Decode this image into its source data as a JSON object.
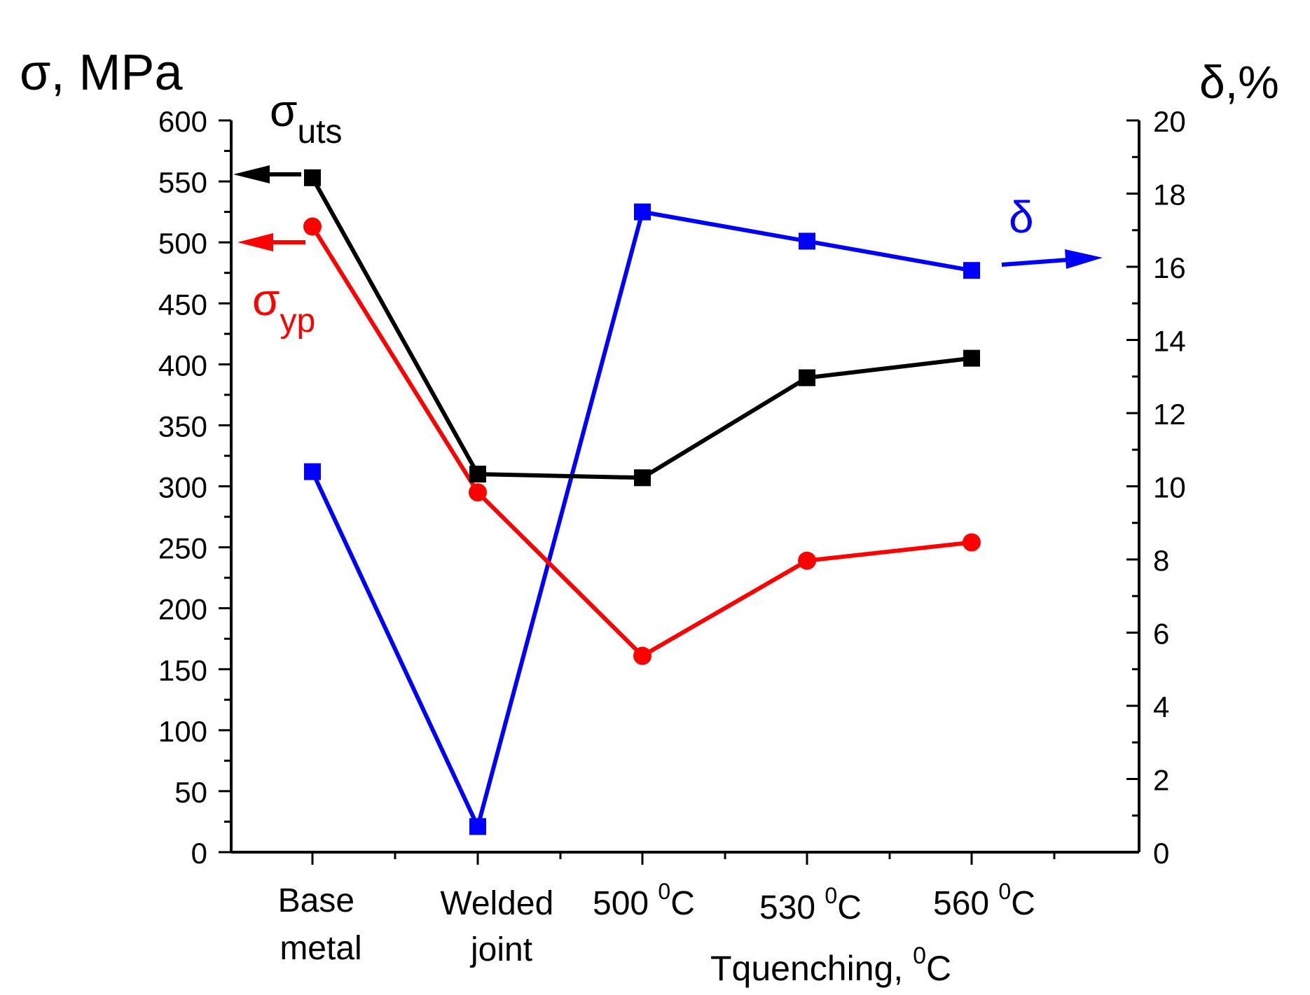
{
  "chart_data": {
    "type": "line",
    "categories": [
      "Base metal",
      "Welded joint",
      "500 °C",
      "530 °C",
      "560 °C"
    ],
    "category_labels": [
      {
        "line1": "Base",
        "line2": "metal"
      },
      {
        "line1": "Welded",
        "line2": "joint"
      },
      {
        "base": "500 ",
        "sup": "0",
        "tail": "C"
      },
      {
        "base": "530 ",
        "sup": "0",
        "tail": "C"
      },
      {
        "base": "560 ",
        "sup": "0",
        "tail": "C"
      }
    ],
    "xlabel": {
      "base": "Tquenching, ",
      "sup": "0",
      "tail": "C"
    },
    "ylabel_left": "σ, MPa",
    "ylabel_right": "δ,%",
    "ylim_left": [
      0,
      600
    ],
    "ylim_right": [
      0,
      20
    ],
    "yticks_left": [
      "0",
      "50",
      "100",
      "150",
      "200",
      "250",
      "300",
      "350",
      "400",
      "450",
      "500",
      "550",
      "600"
    ],
    "yticks_right": [
      "0",
      "2",
      "4",
      "6",
      "8",
      "10",
      "12",
      "14",
      "16",
      "18",
      "20"
    ],
    "series": [
      {
        "name": "σuts",
        "label_main": "σ",
        "label_sub": "uts",
        "axis": "left",
        "marker": "square",
        "color": "#000000",
        "values": [
          553,
          310,
          307,
          389,
          405
        ]
      },
      {
        "name": "σyp",
        "label_main": "σ",
        "label_sub": "yp",
        "axis": "left",
        "marker": "circle",
        "color": "#ff0000",
        "values": [
          513,
          295,
          161,
          239,
          254
        ]
      },
      {
        "name": "δ",
        "label_main": "δ",
        "label_sub": "",
        "axis": "right",
        "marker": "square",
        "color": "#0000ff",
        "values": [
          10.4,
          0.7,
          17.5,
          16.7,
          15.9
        ]
      }
    ]
  }
}
